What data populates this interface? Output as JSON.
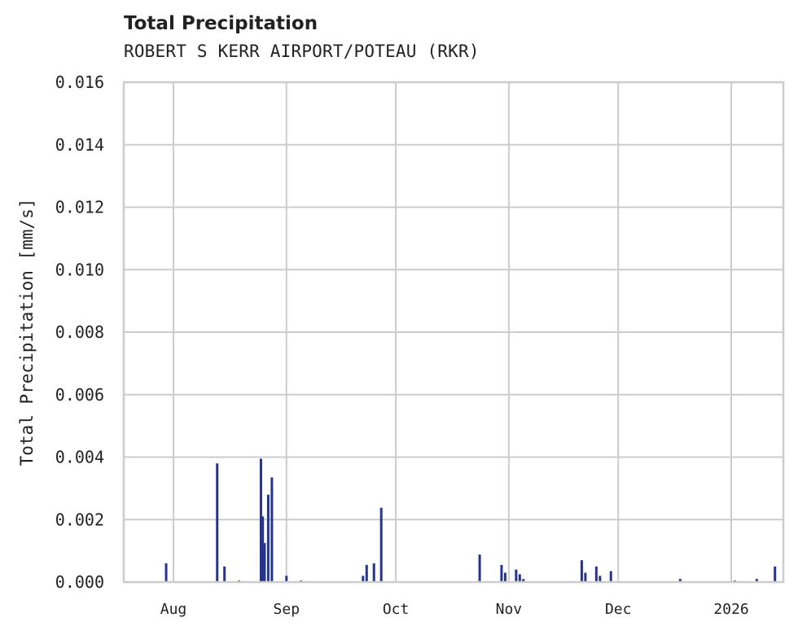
{
  "header": {
    "title": "Total Precipitation",
    "subtitle": "ROBERT S KERR AIRPORT/POTEAU (RKR)"
  },
  "colors": {
    "series": "#25358f",
    "grid": "#cccccc",
    "text": "#222222"
  },
  "chart_data": {
    "type": "bar",
    "title": "Total Precipitation",
    "subtitle": "ROBERT S KERR AIRPORT/POTEAU (RKR)",
    "xlabel": "",
    "ylabel": "Total Precipitation [mm/s]",
    "ylim": [
      0.0,
      0.016
    ],
    "yticks": [
      "0.000",
      "0.002",
      "0.004",
      "0.006",
      "0.008",
      "0.010",
      "0.012",
      "0.014",
      "0.016"
    ],
    "xticks": [
      "Aug",
      "Sep",
      "Oct",
      "Nov",
      "Dec",
      "2026"
    ],
    "grid": true,
    "legend": null,
    "series": [
      {
        "name": "Total Precipitation",
        "color": "#25358f",
        "points": [
          {
            "date": "2025-07-30",
            "value": 0.0006
          },
          {
            "date": "2025-08-13",
            "value": 0.0038
          },
          {
            "date": "2025-08-15",
            "value": 0.0005
          },
          {
            "date": "2025-08-19",
            "value": 5e-05
          },
          {
            "date": "2025-08-25",
            "value": 0.00395
          },
          {
            "date": "2025-08-25T12",
            "value": 0.0021
          },
          {
            "date": "2025-08-26",
            "value": 0.00125
          },
          {
            "date": "2025-08-27",
            "value": 0.0028
          },
          {
            "date": "2025-08-28",
            "value": 0.00335
          },
          {
            "date": "2025-09-01",
            "value": 0.0002
          },
          {
            "date": "2025-09-05",
            "value": 5e-05
          },
          {
            "date": "2025-09-22",
            "value": 0.0002
          },
          {
            "date": "2025-09-23",
            "value": 0.00055
          },
          {
            "date": "2025-09-25",
            "value": 0.0006
          },
          {
            "date": "2025-09-27",
            "value": 0.00238
          },
          {
            "date": "2025-10-24",
            "value": 0.00088
          },
          {
            "date": "2025-10-30",
            "value": 0.00055
          },
          {
            "date": "2025-10-31",
            "value": 0.0003
          },
          {
            "date": "2025-11-03",
            "value": 0.0004
          },
          {
            "date": "2025-11-04",
            "value": 0.00025
          },
          {
            "date": "2025-11-05",
            "value": 0.0001
          },
          {
            "date": "2025-11-21",
            "value": 0.0007
          },
          {
            "date": "2025-11-22",
            "value": 0.0003
          },
          {
            "date": "2025-11-25",
            "value": 0.0005
          },
          {
            "date": "2025-11-26",
            "value": 0.0002
          },
          {
            "date": "2025-11-29",
            "value": 0.00035
          },
          {
            "date": "2025-12-18",
            "value": 0.0001
          },
          {
            "date": "2026-01-02",
            "value": 5e-05
          },
          {
            "date": "2026-01-08",
            "value": 0.0001
          },
          {
            "date": "2026-01-13",
            "value": 0.0005
          }
        ]
      }
    ]
  }
}
